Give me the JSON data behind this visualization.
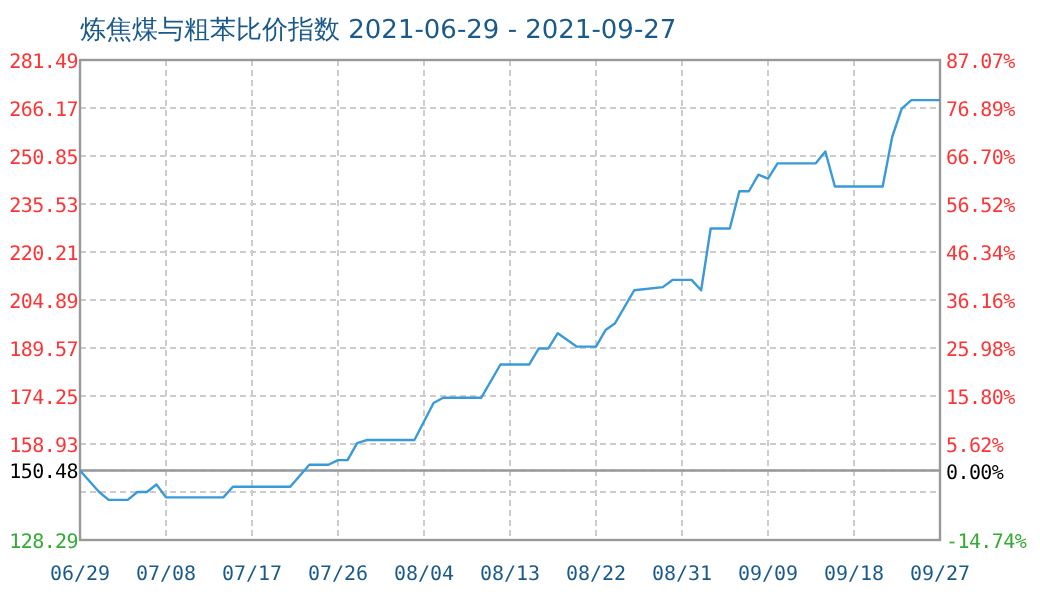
{
  "chart_data": {
    "type": "line",
    "title": "炼焦煤与粗苯比价指数 2021-06-29 - 2021-09-27",
    "x": [
      "2021-06-29",
      "2021-07-01",
      "2021-07-02",
      "2021-07-04",
      "2021-07-05",
      "2021-07-06",
      "2021-07-07",
      "2021-07-08",
      "2021-07-14",
      "2021-07-15",
      "2021-07-21",
      "2021-07-23",
      "2021-07-25",
      "2021-07-26",
      "2021-07-27",
      "2021-07-28",
      "2021-07-29",
      "2021-08-03",
      "2021-08-05",
      "2021-08-06",
      "2021-08-10",
      "2021-08-12",
      "2021-08-15",
      "2021-08-16",
      "2021-08-17",
      "2021-08-18",
      "2021-08-20",
      "2021-08-22",
      "2021-08-23",
      "2021-08-24",
      "2021-08-26",
      "2021-08-29",
      "2021-08-30",
      "2021-09-01",
      "2021-09-02",
      "2021-09-03",
      "2021-09-05",
      "2021-09-06",
      "2021-09-07",
      "2021-09-08",
      "2021-09-09",
      "2021-09-10",
      "2021-09-14",
      "2021-09-15",
      "2021-09-16",
      "2021-09-21",
      "2021-09-22",
      "2021-09-23",
      "2021-09-24",
      "2021-09-27"
    ],
    "series": [
      {
        "color": "#3a9ad9",
        "values": [
          150.48,
          143.6,
          141.1,
          141.1,
          143.6,
          143.6,
          146,
          141.9,
          141.9,
          145.3,
          145.3,
          152.3,
          152.3,
          153.8,
          153.8,
          159.2,
          160.2,
          160.2,
          172,
          173.7,
          173.7,
          184.3,
          184.3,
          189.4,
          189.4,
          194.3,
          190,
          190,
          195.3,
          197.5,
          208,
          209,
          211.3,
          211.3,
          208,
          227.7,
          227.7,
          239.6,
          239.6,
          244.9,
          243.6,
          248.5,
          248.5,
          252.3,
          241.1,
          241.1,
          257,
          266,
          268.7,
          268.7
        ]
      }
    ],
    "xlim": [
      "2021-06-29",
      "2021-09-27"
    ],
    "xticks": [
      {
        "value": "2021-06-29",
        "label": "06/29"
      },
      {
        "value": "2021-07-08",
        "label": "07/08"
      },
      {
        "value": "2021-07-17",
        "label": "07/17"
      },
      {
        "value": "2021-07-26",
        "label": "07/26"
      },
      {
        "value": "2021-08-04",
        "label": "08/04"
      },
      {
        "value": "2021-08-13",
        "label": "08/13"
      },
      {
        "value": "2021-08-22",
        "label": "08/22"
      },
      {
        "value": "2021-08-31",
        "label": "08/31"
      },
      {
        "value": "2021-09-09",
        "label": "09/09"
      },
      {
        "value": "2021-09-18",
        "label": "09/18"
      },
      {
        "value": "2021-09-27",
        "label": "09/27"
      }
    ],
    "ylim": [
      128.29,
      281.49
    ],
    "yticks": [
      {
        "value": 128.29,
        "label": "128.29"
      },
      {
        "value": 143.61,
        "label": null
      },
      {
        "value": 150.48,
        "label": "150.48"
      },
      {
        "value": 158.93,
        "label": "158.93"
      },
      {
        "value": 174.25,
        "label": "174.25"
      },
      {
        "value": 189.57,
        "label": "189.57"
      },
      {
        "value": 204.89,
        "label": "204.89"
      },
      {
        "value": 220.21,
        "label": "220.21"
      },
      {
        "value": 235.53,
        "label": "235.53"
      },
      {
        "value": 250.85,
        "label": "250.85"
      },
      {
        "value": 266.17,
        "label": "266.17"
      },
      {
        "value": 281.49,
        "label": "281.49"
      }
    ],
    "y2lim": [
      -14.74,
      87.07
    ],
    "y2ticks": [
      {
        "value": -14.74,
        "label": "-14.74%"
      },
      {
        "value": 0,
        "label": "0.00%"
      },
      {
        "value": 5.62,
        "label": "5.62%"
      },
      {
        "value": 15.8,
        "label": "15.80%"
      },
      {
        "value": 25.98,
        "label": "25.98%"
      },
      {
        "value": 36.16,
        "label": "36.16%"
      },
      {
        "value": 46.34,
        "label": "46.34%"
      },
      {
        "value": 56.52,
        "label": "56.52%"
      },
      {
        "value": 66.7,
        "label": "66.70%"
      },
      {
        "value": 76.89,
        "label": "76.89%"
      },
      {
        "value": 87.07,
        "label": "87.07%"
      }
    ],
    "ref_lines": [
      {
        "axis": "y",
        "value": 150.48,
        "color": "#999999"
      }
    ],
    "grid": true,
    "marker": "none",
    "line_style": "solid"
  }
}
